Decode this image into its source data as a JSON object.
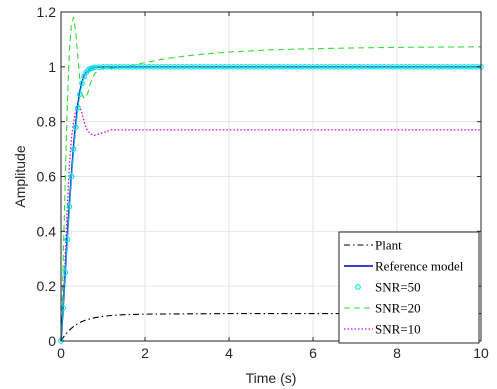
{
  "chart_data": {
    "type": "line",
    "title": "",
    "xlabel": "Time (s)",
    "ylabel": "Amplitude",
    "xlim": [
      0,
      10
    ],
    "ylim": [
      0,
      1.2
    ],
    "xticks": [
      0,
      2,
      4,
      6,
      8,
      10
    ],
    "yticks": [
      0,
      0.2,
      0.4,
      0.6,
      0.8,
      1,
      1.2
    ],
    "xtick_labels": [
      "0",
      "2",
      "4",
      "6",
      "8",
      "10"
    ],
    "ytick_labels": [
      "0",
      "0.2",
      "0.4",
      "0.6",
      "0.8",
      "1",
      "1.2"
    ],
    "grid": true,
    "legend_position": "bottom-right",
    "series": [
      {
        "name": "Plant",
        "color": "#000000",
        "style": "dash-dot",
        "x": [
          0,
          0.05,
          0.1,
          0.2,
          0.3,
          0.4,
          0.5,
          0.6,
          0.8,
          1.0,
          1.2,
          1.5,
          2,
          3,
          4,
          5,
          6,
          7,
          8,
          9,
          10
        ],
        "y": [
          0,
          0.012,
          0.023,
          0.04,
          0.053,
          0.063,
          0.071,
          0.077,
          0.085,
          0.09,
          0.093,
          0.096,
          0.098,
          0.099,
          0.1,
          0.1,
          0.1,
          0.1,
          0.1,
          0.1,
          0.1
        ]
      },
      {
        "name": "Reference model",
        "color": "#0000b4",
        "style": "solid",
        "x": [
          0,
          0.05,
          0.1,
          0.15,
          0.2,
          0.25,
          0.3,
          0.35,
          0.4,
          0.45,
          0.5,
          0.55,
          0.6,
          0.7,
          0.8,
          1.0,
          1.2,
          1.5,
          2,
          3,
          4,
          5,
          6,
          7,
          8,
          9,
          10
        ],
        "y": [
          0,
          0.12,
          0.25,
          0.38,
          0.5,
          0.61,
          0.71,
          0.79,
          0.86,
          0.91,
          0.945,
          0.967,
          0.98,
          0.993,
          0.998,
          1.0,
          1.0,
          1.0,
          1.0,
          1.0,
          1.0,
          1.0,
          1.0,
          1.0,
          1.0,
          1.0,
          1.0
        ]
      },
      {
        "name": "SNR=50",
        "color": "#00e5e5",
        "style": "circle-markers",
        "x": [
          0,
          0.05,
          0.1,
          0.15,
          0.2,
          0.25,
          0.3,
          0.35,
          0.4,
          0.45,
          0.5,
          0.55,
          0.6,
          0.65,
          0.7,
          0.75,
          0.8,
          0.9,
          1.0,
          1.1,
          1.2,
          1.3,
          1.4,
          1.5,
          1.6,
          1.7,
          1.8,
          1.9,
          2.0,
          2.1,
          2.2,
          2.3,
          2.4,
          2.5,
          2.6,
          2.7,
          2.8,
          2.9,
          3.0,
          3.1,
          3.2,
          3.3,
          3.4,
          3.5,
          3.6,
          3.7,
          3.8,
          3.9,
          4.0,
          4.1,
          4.2,
          4.3,
          4.4,
          4.5,
          4.6,
          4.7,
          4.8,
          4.9,
          5.0,
          5.1,
          5.2,
          5.3,
          5.4,
          5.5,
          5.6,
          5.7,
          5.8,
          5.9,
          6.0,
          6.1,
          6.2,
          6.3,
          6.4,
          6.5,
          6.6,
          6.7,
          6.8,
          6.9,
          7.0,
          7.1,
          7.2,
          7.3,
          7.4,
          7.5,
          7.6,
          7.7,
          7.8,
          7.9,
          8.0,
          8.1,
          8.2,
          8.3,
          8.4,
          8.5,
          8.6,
          8.7,
          8.8,
          8.9,
          9.0,
          9.1,
          9.2,
          9.3,
          9.4,
          9.5,
          9.6,
          9.7,
          9.8,
          9.9,
          10.0
        ],
        "y": [
          0,
          0.12,
          0.25,
          0.37,
          0.49,
          0.6,
          0.7,
          0.78,
          0.85,
          0.9,
          0.94,
          0.965,
          0.98,
          0.988,
          0.993,
          0.996,
          0.998,
          0.999,
          1.0,
          1.0,
          1.0,
          1.0,
          1.0,
          1.0,
          1.0,
          1.0,
          1.0,
          1.0,
          1.0,
          1.0,
          1.0,
          1.0,
          1.0,
          1.0,
          1.0,
          1.0,
          1.0,
          1.0,
          1.0,
          1.0,
          1.0,
          1.0,
          1.0,
          1.0,
          1.0,
          1.0,
          1.0,
          1.0,
          1.0,
          1.0,
          1.0,
          1.0,
          1.0,
          1.0,
          1.0,
          1.0,
          1.0,
          1.0,
          1.0,
          1.0,
          1.0,
          1.0,
          1.0,
          1.0,
          1.0,
          1.0,
          1.0,
          1.0,
          1.0,
          1.0,
          1.0,
          1.0,
          1.0,
          1.0,
          1.0,
          1.0,
          1.0,
          1.0,
          1.0,
          1.0,
          1.0,
          1.0,
          1.0,
          1.0,
          1.0,
          1.0,
          1.0,
          1.0,
          1.0,
          1.0,
          1.0,
          1.0,
          1.0,
          1.0,
          1.0,
          1.0,
          1.0,
          1.0,
          1.0,
          1.0,
          1.0,
          1.0,
          1.0,
          1.0,
          1.0,
          1.0,
          1.0,
          1.0,
          1.0
        ]
      },
      {
        "name": "SNR=20",
        "color": "#33dd33",
        "style": "dashed",
        "x": [
          0,
          0.05,
          0.1,
          0.15,
          0.2,
          0.25,
          0.3,
          0.35,
          0.4,
          0.45,
          0.5,
          0.55,
          0.6,
          0.65,
          0.7,
          0.8,
          0.9,
          1.0,
          1.2,
          1.5,
          2,
          2.5,
          3,
          3.5,
          4,
          5,
          6,
          7,
          8,
          9,
          10
        ],
        "y": [
          0,
          0.28,
          0.58,
          0.86,
          1.06,
          1.16,
          1.18,
          1.13,
          1.04,
          0.95,
          0.9,
          0.885,
          0.89,
          0.91,
          0.94,
          0.975,
          0.99,
          0.995,
          0.995,
          1.0,
          1.015,
          1.03,
          1.04,
          1.048,
          1.054,
          1.062,
          1.066,
          1.069,
          1.071,
          1.072,
          1.073
        ]
      },
      {
        "name": "SNR=10",
        "color": "#e000e0",
        "style": "dotted",
        "x": [
          0,
          0.05,
          0.1,
          0.15,
          0.2,
          0.25,
          0.3,
          0.35,
          0.4,
          0.45,
          0.5,
          0.55,
          0.6,
          0.7,
          0.8,
          1.0,
          1.2,
          1.5,
          2,
          3,
          4,
          5,
          6,
          7,
          8,
          9,
          10
        ],
        "y": [
          0,
          0.12,
          0.3,
          0.49,
          0.64,
          0.74,
          0.8,
          0.84,
          0.86,
          0.855,
          0.83,
          0.8,
          0.775,
          0.755,
          0.75,
          0.76,
          0.77,
          0.77,
          0.77,
          0.77,
          0.77,
          0.77,
          0.77,
          0.77,
          0.77,
          0.77,
          0.77
        ]
      }
    ]
  }
}
